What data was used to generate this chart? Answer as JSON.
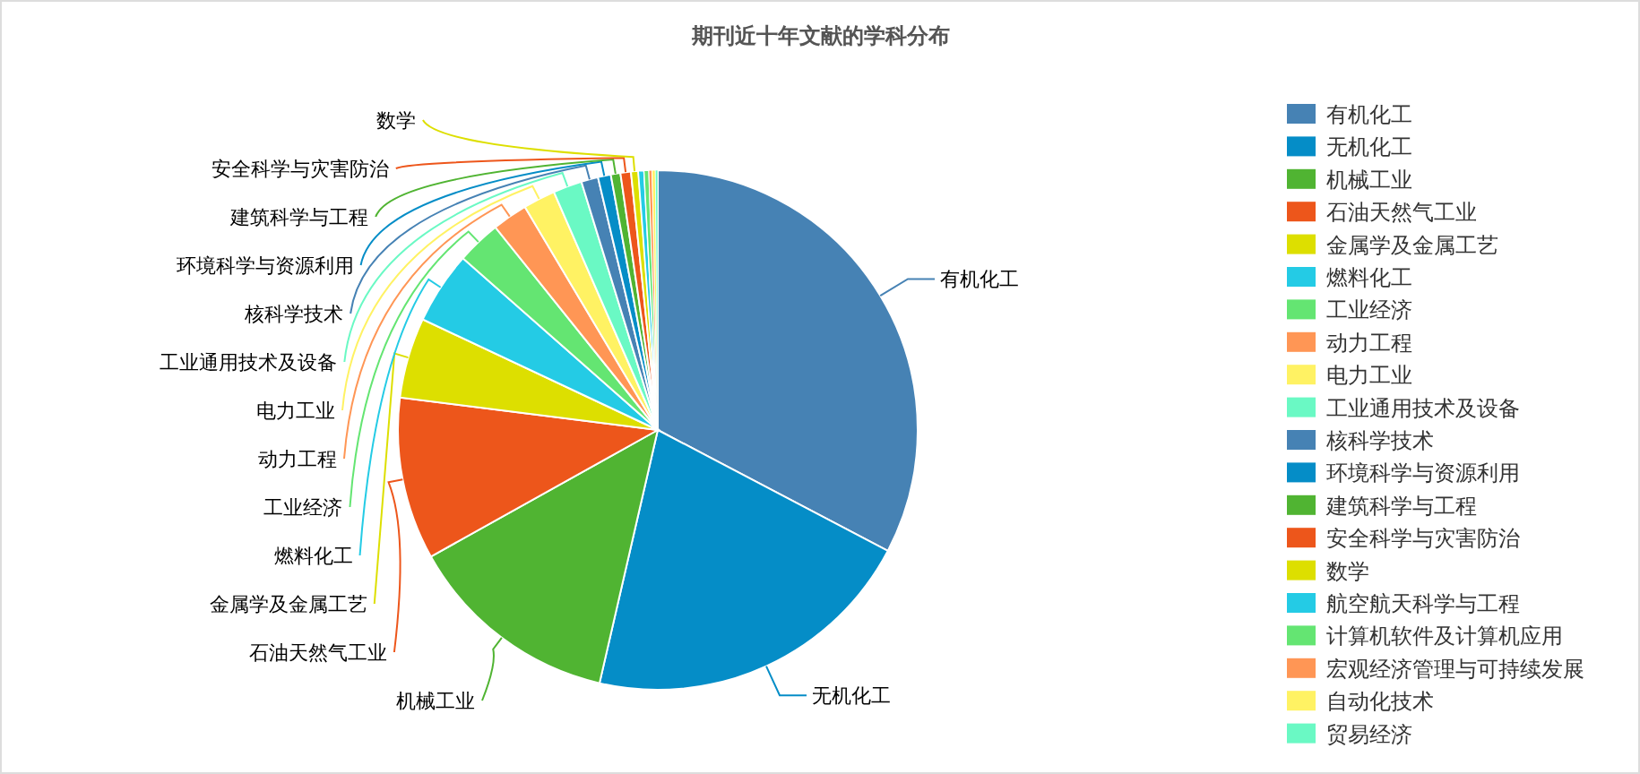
{
  "chart_data": {
    "type": "pie",
    "title": "期刊近十年文献的学科分布",
    "categories": [
      "有机化工",
      "无机化工",
      "机械工业",
      "石油天然气工业",
      "金属学及金属工艺",
      "燃料化工",
      "工业经济",
      "动力工程",
      "电力工业",
      "工业通用技术及设备",
      "核科学技术",
      "环境科学与资源利用",
      "建筑科学与工程",
      "安全科学与灾害防治",
      "数学",
      "航空航天科学与工程",
      "计算机软件及计算机应用",
      "宏观经济管理与可持续发展",
      "自动化技术",
      "贸易经济"
    ],
    "values": [
      32.7,
      20.9,
      13.3,
      10.1,
      5.0,
      4.5,
      2.75,
      2.2,
      2.0,
      1.8,
      1.05,
      0.8,
      0.6,
      0.65,
      0.45,
      0.35,
      0.3,
      0.2,
      0.2,
      0.15
    ],
    "colors": [
      "#4682b4",
      "#058dc7",
      "#50b432",
      "#ed561b",
      "#dddf00",
      "#24cbe5",
      "#64e572",
      "#ff9655",
      "#fff263",
      "#6af9c4",
      "#4682b4",
      "#058dc7",
      "#50b432",
      "#ed561b",
      "#dddf00",
      "#24cbe5",
      "#64e572",
      "#ff9655",
      "#fff263",
      "#6af9c4"
    ],
    "legend": "right"
  }
}
